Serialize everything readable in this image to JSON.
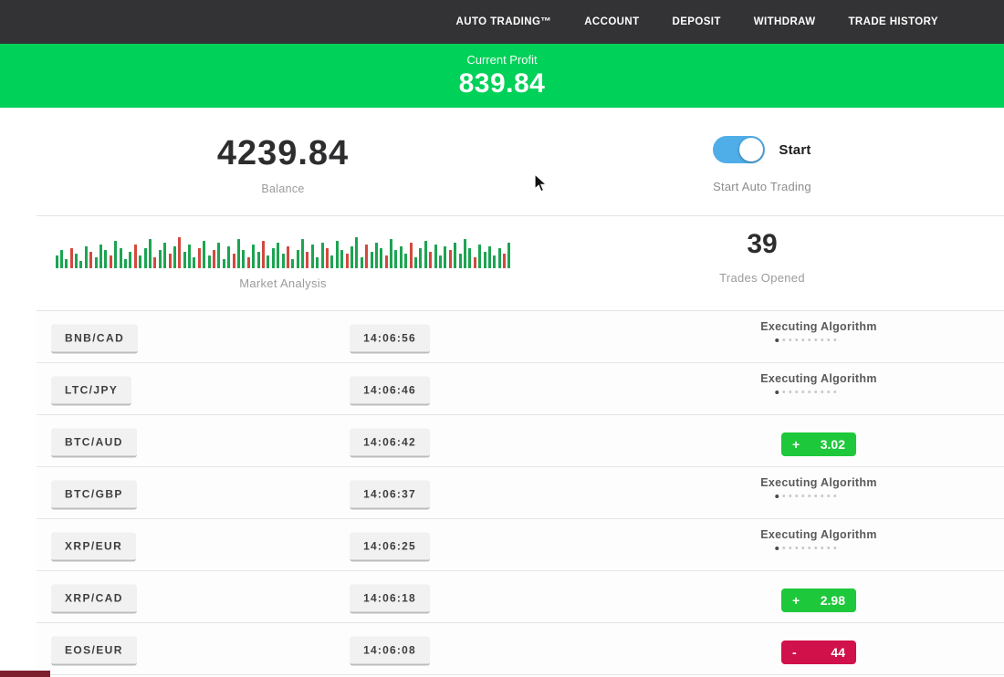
{
  "nav": {
    "items": [
      {
        "label": "AUTO TRADING™"
      },
      {
        "label": "ACCOUNT"
      },
      {
        "label": "DEPOSIT"
      },
      {
        "label": "WITHDRAW"
      },
      {
        "label": "TRADE HISTORY"
      }
    ]
  },
  "profit_banner": {
    "label": "Current Profit",
    "value": "839.84",
    "bg_color": "#00d158"
  },
  "account": {
    "balance_value": "4239.84",
    "balance_label": "Balance",
    "toggle_label": "Start",
    "toggle_state": "on",
    "toggle_color": "#4fade8",
    "toggle_caption": "Start Auto Trading"
  },
  "market": {
    "label": "Market Analysis",
    "trades_opened_value": "39",
    "trades_opened_label": "Trades Opened",
    "bar_colors": {
      "up": "#1da452",
      "down": "#d2493f"
    },
    "chart_data": {
      "type": "bar",
      "note": "mini market-analysis sparkline, values are bar heights in px, g=up green r=down red",
      "bars": [
        [
          14,
          "g"
        ],
        [
          20,
          "g"
        ],
        [
          10,
          "g"
        ],
        [
          22,
          "r"
        ],
        [
          16,
          "g"
        ],
        [
          8,
          "g"
        ],
        [
          24,
          "g"
        ],
        [
          18,
          "r"
        ],
        [
          12,
          "g"
        ],
        [
          26,
          "g"
        ],
        [
          20,
          "g"
        ],
        [
          14,
          "r"
        ],
        [
          30,
          "g"
        ],
        [
          22,
          "g"
        ],
        [
          10,
          "g"
        ],
        [
          18,
          "g"
        ],
        [
          26,
          "r"
        ],
        [
          14,
          "g"
        ],
        [
          22,
          "g"
        ],
        [
          32,
          "g"
        ],
        [
          12,
          "r"
        ],
        [
          20,
          "g"
        ],
        [
          28,
          "g"
        ],
        [
          16,
          "r"
        ],
        [
          24,
          "g"
        ],
        [
          34,
          "r"
        ],
        [
          18,
          "g"
        ],
        [
          26,
          "g"
        ],
        [
          12,
          "g"
        ],
        [
          22,
          "r"
        ],
        [
          30,
          "g"
        ],
        [
          14,
          "g"
        ],
        [
          20,
          "r"
        ],
        [
          28,
          "g"
        ],
        [
          10,
          "g"
        ],
        [
          24,
          "g"
        ],
        [
          16,
          "r"
        ],
        [
          32,
          "g"
        ],
        [
          20,
          "g"
        ],
        [
          12,
          "r"
        ],
        [
          26,
          "g"
        ],
        [
          18,
          "g"
        ],
        [
          30,
          "r"
        ],
        [
          14,
          "g"
        ],
        [
          22,
          "g"
        ],
        [
          28,
          "g"
        ],
        [
          16,
          "g"
        ],
        [
          24,
          "r"
        ],
        [
          10,
          "g"
        ],
        [
          20,
          "g"
        ],
        [
          32,
          "g"
        ],
        [
          18,
          "r"
        ],
        [
          26,
          "g"
        ],
        [
          12,
          "g"
        ],
        [
          28,
          "g"
        ],
        [
          22,
          "r"
        ],
        [
          14,
          "g"
        ],
        [
          30,
          "g"
        ],
        [
          20,
          "g"
        ],
        [
          16,
          "r"
        ],
        [
          24,
          "g"
        ],
        [
          34,
          "g"
        ],
        [
          12,
          "g"
        ],
        [
          26,
          "r"
        ],
        [
          18,
          "g"
        ],
        [
          28,
          "g"
        ],
        [
          22,
          "g"
        ],
        [
          14,
          "r"
        ],
        [
          32,
          "g"
        ],
        [
          20,
          "g"
        ],
        [
          24,
          "g"
        ],
        [
          16,
          "g"
        ],
        [
          28,
          "r"
        ],
        [
          12,
          "g"
        ],
        [
          22,
          "g"
        ],
        [
          30,
          "g"
        ],
        [
          18,
          "r"
        ],
        [
          26,
          "g"
        ],
        [
          14,
          "g"
        ],
        [
          24,
          "g"
        ],
        [
          20,
          "r"
        ],
        [
          28,
          "g"
        ],
        [
          16,
          "g"
        ],
        [
          32,
          "g"
        ],
        [
          22,
          "g"
        ],
        [
          12,
          "r"
        ],
        [
          26,
          "g"
        ],
        [
          18,
          "g"
        ],
        [
          24,
          "g"
        ],
        [
          14,
          "g"
        ],
        [
          22,
          "g"
        ],
        [
          16,
          "r"
        ],
        [
          28,
          "g"
        ]
      ]
    }
  },
  "trades": {
    "executing_label": "Executing Algorithm",
    "loader_dot_count": 10,
    "badge_colors": {
      "profit": "#1ec83b",
      "loss": "#d0114a"
    },
    "rows": [
      {
        "pair": "BNB/CAD",
        "time": "14:06:56",
        "status": "executing"
      },
      {
        "pair": "LTC/JPY",
        "time": "14:06:46",
        "status": "executing"
      },
      {
        "pair": "BTC/AUD",
        "time": "14:06:42",
        "status": "profit",
        "sign": "+",
        "amount": "3.02"
      },
      {
        "pair": "BTC/GBP",
        "time": "14:06:37",
        "status": "executing"
      },
      {
        "pair": "XRP/EUR",
        "time": "14:06:25",
        "status": "executing"
      },
      {
        "pair": "XRP/CAD",
        "time": "14:06:18",
        "status": "profit",
        "sign": "+",
        "amount": "2.98"
      },
      {
        "pair": "EOS/EUR",
        "time": "14:06:08",
        "status": "loss",
        "sign": "-",
        "amount": "44"
      }
    ]
  }
}
